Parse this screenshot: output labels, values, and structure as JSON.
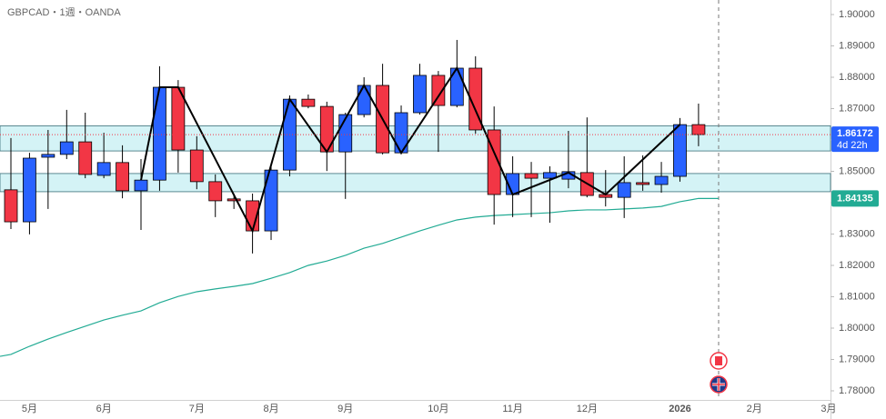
{
  "chart_data": {
    "type": "candlestick",
    "title": "GBPCAD・1週・OANDA",
    "up_color": "#2962ff",
    "down_color": "#f23645",
    "candles": {
      "open": [
        1.8441,
        1.8339,
        1.8545,
        1.8554,
        1.8594,
        1.8487,
        1.8528,
        1.8438,
        1.8472,
        1.8768,
        1.8568,
        1.8467,
        1.8412,
        1.8406,
        1.831,
        1.8504,
        1.873,
        1.8707,
        1.8562,
        1.8681,
        1.8774,
        1.8559,
        1.8687,
        1.8806,
        1.871,
        1.8829,
        1.8632,
        1.8426,
        1.8493,
        1.8478,
        1.8475,
        1.8496,
        1.8426,
        1.8417,
        1.8464,
        1.8458,
        1.8484,
        1.8649
      ],
      "high": [
        1.8606,
        1.8559,
        1.8632,
        1.8696,
        1.8687,
        1.8623,
        1.8583,
        1.8539,
        1.8835,
        1.8791,
        1.8612,
        1.849,
        1.8429,
        1.8429,
        1.8525,
        1.8742,
        1.8745,
        1.8722,
        1.8687,
        1.88,
        1.8843,
        1.871,
        1.8843,
        1.882,
        1.8919,
        1.8867,
        1.8707,
        1.8548,
        1.853,
        1.8516,
        1.8629,
        1.8672,
        1.8504,
        1.8548,
        1.8551,
        1.853,
        1.867,
        1.8716
      ],
      "low": [
        1.8316,
        1.8299,
        1.838,
        1.8539,
        1.8478,
        1.8478,
        1.8414,
        1.8313,
        1.8438,
        1.8496,
        1.8443,
        1.8354,
        1.838,
        1.8238,
        1.8281,
        1.8484,
        1.8701,
        1.8501,
        1.8412,
        1.8672,
        1.8554,
        1.8554,
        1.8681,
        1.8562,
        1.8704,
        1.862,
        1.833,
        1.8354,
        1.8354,
        1.8336,
        1.8446,
        1.8417,
        1.8388,
        1.8351,
        1.8438,
        1.8432,
        1.8467,
        1.858
      ],
      "close": [
        1.8339,
        1.8542,
        1.8554,
        1.8594,
        1.849,
        1.8528,
        1.8438,
        1.8472,
        1.8768,
        1.8568,
        1.8467,
        1.8406,
        1.8406,
        1.831,
        1.8504,
        1.873,
        1.8707,
        1.8562,
        1.8681,
        1.8774,
        1.8559,
        1.8687,
        1.8806,
        1.871,
        1.8829,
        1.8632,
        1.8426,
        1.8493,
        1.8478,
        1.8496,
        1.8499,
        1.8423,
        1.8417,
        1.8464,
        1.8458,
        1.8484,
        1.8649,
        1.86172
      ]
    },
    "countdown": "4d 22h",
    "moving_average": {
      "color": "#22ab94",
      "values": [
        1.7916,
        1.7942,
        1.7965,
        1.7986,
        1.8006,
        1.8026,
        1.8041,
        1.8055,
        1.8081,
        1.8101,
        1.8116,
        1.8125,
        1.8133,
        1.8142,
        1.8159,
        1.8177,
        1.82,
        1.8214,
        1.8232,
        1.8255,
        1.827,
        1.829,
        1.831,
        1.8328,
        1.8345,
        1.8354,
        1.8359,
        1.8362,
        1.8365,
        1.8368,
        1.8374,
        1.8377,
        1.8377,
        1.838,
        1.8383,
        1.8388,
        1.8403,
        1.84135
      ]
    },
    "zigzag": {
      "color": "#000000",
      "x": [
        7,
        8,
        9,
        13,
        15,
        17,
        19,
        21,
        24,
        27,
        30,
        32,
        36
      ],
      "values": [
        1.8472,
        1.8768,
        1.8768,
        1.831,
        1.873,
        1.8562,
        1.8774,
        1.8559,
        1.8829,
        1.8426,
        1.8496,
        1.8426,
        1.8649
      ]
    },
    "zones": [
      [
        1.8565,
        1.8645
      ],
      [
        1.8435,
        1.8493
      ]
    ],
    "zone_color": "#d4f3f6",
    "ylim": [
      1.7771,
      1.90464
    ],
    "yticks": [
      {
        "value": 1.9,
        "label": "1.90000"
      },
      {
        "value": 1.89,
        "label": "1.89000"
      },
      {
        "value": 1.88,
        "label": "1.88000"
      },
      {
        "value": 1.87,
        "label": "1.87000"
      },
      {
        "value": 1.86,
        "label": "1.86000"
      },
      {
        "value": 1.85,
        "label": "1.85000"
      },
      {
        "value": 1.84,
        "label": "1.84000"
      },
      {
        "value": 1.83,
        "label": "1.83000"
      },
      {
        "value": 1.82,
        "label": "1.82000"
      },
      {
        "value": 1.81,
        "label": "1.81000"
      },
      {
        "value": 1.8,
        "label": "1.80000"
      },
      {
        "value": 1.79,
        "label": "1.79000"
      },
      {
        "value": 1.78,
        "label": "1.78000"
      }
    ],
    "xticks": [
      {
        "value": 1,
        "label": "5月"
      },
      {
        "value": 5,
        "label": "6月"
      },
      {
        "value": 10,
        "label": "7月"
      },
      {
        "value": 14,
        "label": "8月"
      },
      {
        "value": 18,
        "label": "9月"
      },
      {
        "value": 23,
        "label": "10月"
      },
      {
        "value": 27,
        "label": "11月"
      },
      {
        "value": 31,
        "label": "12月"
      },
      {
        "value": 36,
        "label": "2026"
      },
      {
        "value": 40,
        "label": "2月"
      },
      {
        "value": 44,
        "label": "3月"
      }
    ]
  }
}
